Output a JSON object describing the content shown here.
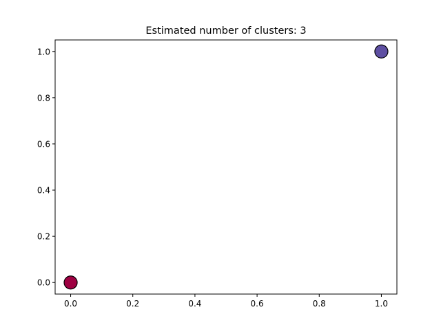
{
  "chart_data": {
    "type": "scatter",
    "title": "Estimated number of clusters: 3",
    "xlabel": "",
    "ylabel": "",
    "xlim": [
      -0.05,
      1.05
    ],
    "ylim": [
      -0.05,
      1.05
    ],
    "xticks": [
      "0.0",
      "0.2",
      "0.4",
      "0.6",
      "0.8",
      "1.0"
    ],
    "yticks": [
      "0.0",
      "0.2",
      "0.4",
      "0.6",
      "0.8",
      "1.0"
    ],
    "grid": false,
    "legend": "none",
    "points": [
      {
        "x": 0.0,
        "y": 0.0,
        "color": "#9e0142"
      },
      {
        "x": 1.0,
        "y": 1.0,
        "color": "#5e4fa2"
      }
    ]
  }
}
